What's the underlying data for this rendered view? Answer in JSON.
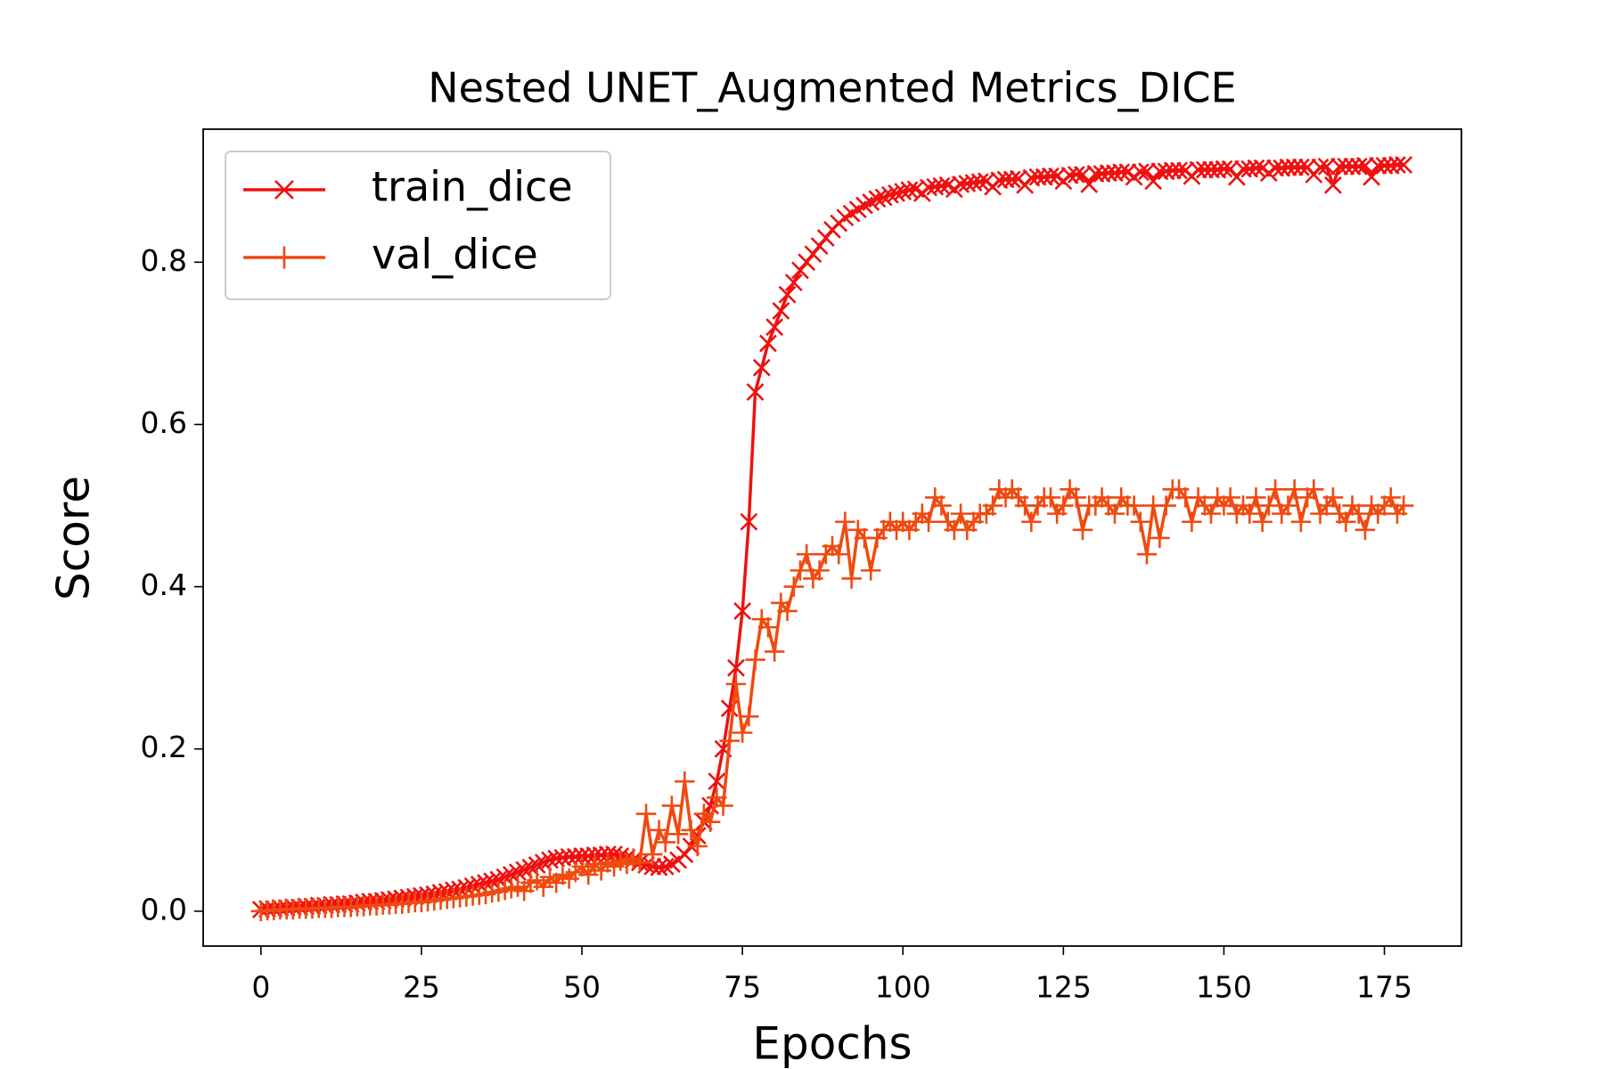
{
  "chart_data": {
    "type": "line",
    "title": "Nested UNET_Augmented Metrics_DICE",
    "x_label": "Epochs",
    "y_label": "Score",
    "x": [
      0,
      1,
      2,
      3,
      4,
      5,
      6,
      7,
      8,
      9,
      10,
      11,
      12,
      13,
      14,
      15,
      16,
      17,
      18,
      19,
      20,
      21,
      22,
      23,
      24,
      25,
      26,
      27,
      28,
      29,
      30,
      31,
      32,
      33,
      34,
      35,
      36,
      37,
      38,
      39,
      40,
      41,
      42,
      43,
      44,
      45,
      46,
      47,
      48,
      49,
      50,
      51,
      52,
      53,
      54,
      55,
      56,
      57,
      58,
      59,
      60,
      61,
      62,
      63,
      64,
      65,
      66,
      67,
      68,
      69,
      70,
      71,
      72,
      73,
      74,
      75,
      76,
      77,
      78,
      79,
      80,
      81,
      82,
      83,
      84,
      85,
      86,
      87,
      88,
      89,
      90,
      91,
      92,
      93,
      94,
      95,
      96,
      97,
      98,
      99,
      100,
      101,
      102,
      103,
      104,
      105,
      106,
      107,
      108,
      109,
      110,
      111,
      112,
      113,
      114,
      115,
      116,
      117,
      118,
      119,
      120,
      121,
      122,
      123,
      124,
      125,
      126,
      127,
      128,
      129,
      130,
      131,
      132,
      133,
      134,
      135,
      136,
      137,
      138,
      139,
      140,
      141,
      142,
      143,
      144,
      145,
      146,
      147,
      148,
      149,
      150,
      151,
      152,
      153,
      154,
      155,
      156,
      157,
      158,
      159,
      160,
      161,
      162,
      163,
      164,
      165,
      166,
      167,
      168,
      169,
      170,
      171,
      172,
      173,
      174,
      175,
      176,
      177,
      178
    ],
    "series": [
      {
        "name": "train_dice",
        "color": "#f01010",
        "marker": "x",
        "values": [
          0.002,
          0.003,
          0.003,
          0.004,
          0.004,
          0.005,
          0.005,
          0.006,
          0.006,
          0.007,
          0.007,
          0.008,
          0.008,
          0.009,
          0.009,
          0.01,
          0.011,
          0.012,
          0.012,
          0.013,
          0.014,
          0.015,
          0.016,
          0.017,
          0.018,
          0.019,
          0.02,
          0.021,
          0.023,
          0.024,
          0.026,
          0.027,
          0.029,
          0.031,
          0.033,
          0.035,
          0.037,
          0.039,
          0.042,
          0.045,
          0.048,
          0.051,
          0.054,
          0.057,
          0.06,
          0.063,
          0.065,
          0.066,
          0.067,
          0.067,
          0.068,
          0.068,
          0.069,
          0.069,
          0.07,
          0.07,
          0.068,
          0.066,
          0.063,
          0.06,
          0.057,
          0.055,
          0.054,
          0.055,
          0.058,
          0.063,
          0.07,
          0.08,
          0.093,
          0.11,
          0.13,
          0.16,
          0.2,
          0.25,
          0.3,
          0.37,
          0.48,
          0.64,
          0.67,
          0.7,
          0.72,
          0.74,
          0.76,
          0.775,
          0.79,
          0.8,
          0.81,
          0.82,
          0.83,
          0.84,
          0.848,
          0.855,
          0.86,
          0.865,
          0.87,
          0.874,
          0.878,
          0.88,
          0.883,
          0.885,
          0.887,
          0.889,
          0.89,
          0.885,
          0.892,
          0.893,
          0.894,
          0.895,
          0.89,
          0.896,
          0.897,
          0.898,
          0.899,
          0.9,
          0.893,
          0.901,
          0.902,
          0.902,
          0.903,
          0.895,
          0.904,
          0.905,
          0.905,
          0.906,
          0.906,
          0.9,
          0.907,
          0.908,
          0.908,
          0.896,
          0.909,
          0.909,
          0.91,
          0.91,
          0.911,
          0.911,
          0.905,
          0.911,
          0.912,
          0.9,
          0.912,
          0.912,
          0.913,
          0.913,
          0.913,
          0.906,
          0.914,
          0.914,
          0.914,
          0.914,
          0.915,
          0.915,
          0.905,
          0.915,
          0.915,
          0.916,
          0.916,
          0.91,
          0.916,
          0.916,
          0.917,
          0.917,
          0.917,
          0.917,
          0.908,
          0.917,
          0.918,
          0.895,
          0.918,
          0.918,
          0.918,
          0.918,
          0.919,
          0.905,
          0.919,
          0.919,
          0.919,
          0.92,
          0.92
        ]
      },
      {
        "name": "val_dice",
        "color": "#f04a10",
        "marker": "+",
        "values": [
          0.0,
          0.001,
          0.001,
          0.002,
          0.002,
          0.002,
          0.003,
          0.003,
          0.003,
          0.004,
          0.004,
          0.004,
          0.005,
          0.005,
          0.005,
          0.006,
          0.006,
          0.007,
          0.007,
          0.008,
          0.008,
          0.009,
          0.009,
          0.01,
          0.011,
          0.011,
          0.012,
          0.013,
          0.014,
          0.015,
          0.016,
          0.017,
          0.018,
          0.019,
          0.02,
          0.021,
          0.023,
          0.024,
          0.026,
          0.028,
          0.03,
          0.025,
          0.035,
          0.038,
          0.03,
          0.042,
          0.035,
          0.045,
          0.04,
          0.048,
          0.055,
          0.045,
          0.058,
          0.05,
          0.06,
          0.055,
          0.062,
          0.058,
          0.065,
          0.06,
          0.12,
          0.07,
          0.1,
          0.085,
          0.13,
          0.095,
          0.16,
          0.1,
          0.08,
          0.12,
          0.11,
          0.14,
          0.13,
          0.21,
          0.28,
          0.22,
          0.24,
          0.31,
          0.36,
          0.35,
          0.32,
          0.38,
          0.37,
          0.4,
          0.42,
          0.44,
          0.41,
          0.42,
          0.44,
          0.45,
          0.44,
          0.48,
          0.41,
          0.47,
          0.46,
          0.42,
          0.46,
          0.47,
          0.48,
          0.47,
          0.48,
          0.47,
          0.48,
          0.49,
          0.48,
          0.51,
          0.5,
          0.48,
          0.47,
          0.49,
          0.47,
          0.48,
          0.49,
          0.49,
          0.5,
          0.52,
          0.51,
          0.52,
          0.51,
          0.5,
          0.48,
          0.5,
          0.51,
          0.51,
          0.49,
          0.5,
          0.52,
          0.51,
          0.47,
          0.5,
          0.5,
          0.51,
          0.5,
          0.49,
          0.51,
          0.5,
          0.5,
          0.48,
          0.44,
          0.5,
          0.46,
          0.5,
          0.52,
          0.52,
          0.51,
          0.48,
          0.51,
          0.5,
          0.49,
          0.51,
          0.5,
          0.51,
          0.49,
          0.5,
          0.49,
          0.51,
          0.48,
          0.5,
          0.52,
          0.49,
          0.5,
          0.52,
          0.48,
          0.51,
          0.52,
          0.49,
          0.5,
          0.51,
          0.49,
          0.48,
          0.5,
          0.49,
          0.47,
          0.5,
          0.49,
          0.5,
          0.51,
          0.49,
          0.5
        ]
      }
    ],
    "xlim": [
      -9,
      187
    ],
    "xticks": [
      0,
      25,
      50,
      75,
      100,
      125,
      150,
      175
    ],
    "ylim": [
      -0.043,
      0.964
    ],
    "yticks": [
      {
        "value": 0,
        "label": "0.0"
      },
      0.2,
      0.4,
      0.6,
      0.8
    ],
    "legend": "upper left",
    "grid": false
  }
}
